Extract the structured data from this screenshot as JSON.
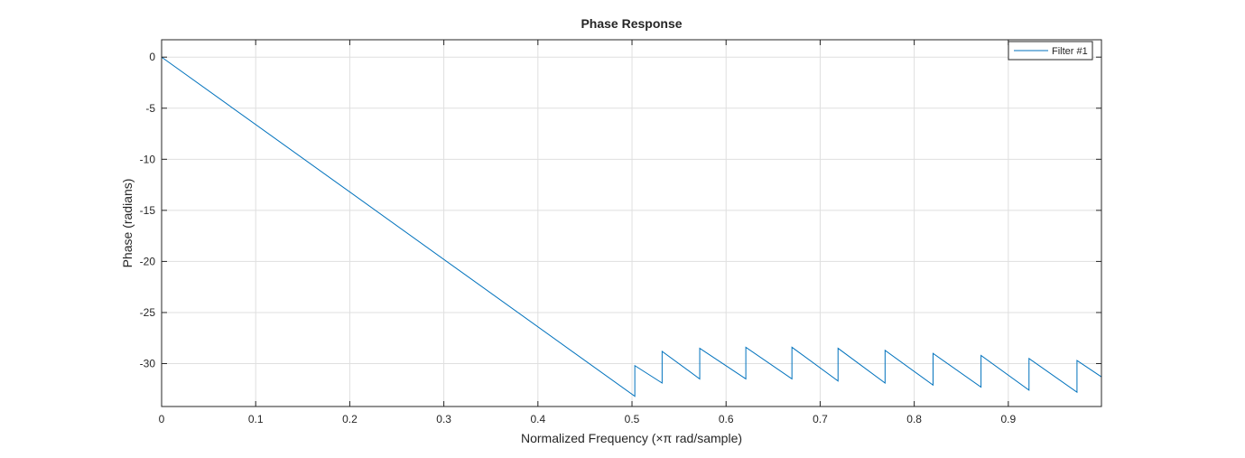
{
  "chart_data": {
    "type": "line",
    "title": "Phase Response",
    "xlabel": "Normalized Frequency (×π rad/sample)",
    "ylabel": "Phase (radians)",
    "xlim": [
      0,
      0.999
    ],
    "ylim": [
      -34.2,
      1.7
    ],
    "xticks": [
      0,
      0.1,
      0.2,
      0.3,
      0.4,
      0.5,
      0.6,
      0.7,
      0.8,
      0.9
    ],
    "xtick_labels": [
      "0",
      "0.1",
      "0.2",
      "0.3",
      "0.4",
      "0.5",
      "0.6",
      "0.7",
      "0.8",
      "0.9"
    ],
    "yticks": [
      0,
      -5,
      -10,
      -15,
      -20,
      -25,
      -30
    ],
    "ytick_labels": [
      "0",
      "-5",
      "-10",
      "-15",
      "-20",
      "-25",
      "-30"
    ],
    "grid": true,
    "legend_position": "top-right",
    "series": [
      {
        "name": "Filter #1",
        "color": "#0072bd",
        "points": [
          [
            0,
            0
          ],
          [
            0.503,
            -33.2
          ],
          [
            0.503,
            -30.2
          ],
          [
            0.532,
            -31.9
          ],
          [
            0.532,
            -28.8
          ],
          [
            0.572,
            -31.5
          ],
          [
            0.572,
            -28.5
          ],
          [
            0.621,
            -31.5
          ],
          [
            0.621,
            -28.4
          ],
          [
            0.67,
            -31.5
          ],
          [
            0.67,
            -28.4
          ],
          [
            0.719,
            -31.7
          ],
          [
            0.719,
            -28.5
          ],
          [
            0.769,
            -31.9
          ],
          [
            0.769,
            -28.7
          ],
          [
            0.82,
            -32.1
          ],
          [
            0.82,
            -29.0
          ],
          [
            0.871,
            -32.3
          ],
          [
            0.871,
            -29.2
          ],
          [
            0.922,
            -32.6
          ],
          [
            0.922,
            -29.5
          ],
          [
            0.973,
            -32.8
          ],
          [
            0.973,
            -29.7
          ],
          [
            0.999,
            -31.3
          ]
        ]
      }
    ]
  }
}
